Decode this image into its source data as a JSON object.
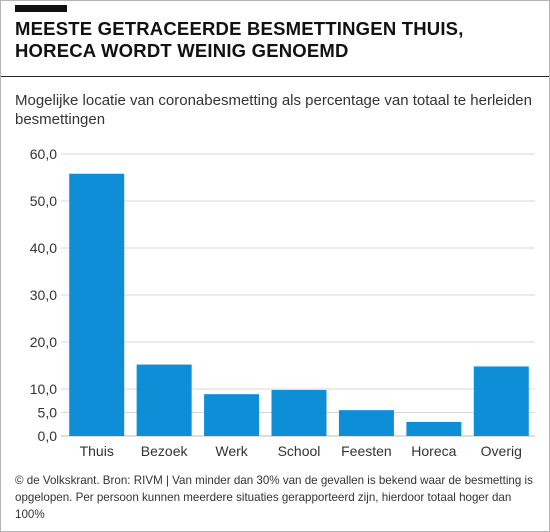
{
  "header": {
    "title_line1": "MEESTE GETRACEERDE BESMETTINGEN THUIS,",
    "title_line2": "HORECA WORDT WEINIG GENOEMD"
  },
  "subtitle": "Mogelijke locatie van coronabesmetting als percentage van totaal te herleiden besmettingen",
  "footnote": "© de Volkskrant. Bron: RIVM | Van minder dan 30% van de gevallen is bekend waar de besmetting is opgelopen. Per persoon kunnen meerdere situaties gerapporteerd zijn, hierdoor totaal hoger dan 100%",
  "colors": {
    "bar": "#0f8ed8",
    "grid": "#d9d9d9",
    "text": "#333333"
  },
  "chart_data": {
    "type": "bar",
    "categories": [
      "Thuis",
      "Bezoek",
      "Werk",
      "School",
      "Feesten",
      "Horeca",
      "Overig"
    ],
    "values": [
      55.8,
      15.2,
      8.9,
      9.8,
      5.5,
      3.0,
      14.8
    ],
    "ylim": [
      0,
      60
    ],
    "yticks": [
      0,
      5,
      10,
      20,
      30,
      40,
      50,
      60
    ],
    "ytick_labels": [
      "0,0",
      "5,0",
      "10,0",
      "20,0",
      "30,0",
      "40,0",
      "50,0",
      "60,0"
    ],
    "grid": true,
    "title": "",
    "xlabel": "",
    "ylabel": ""
  }
}
